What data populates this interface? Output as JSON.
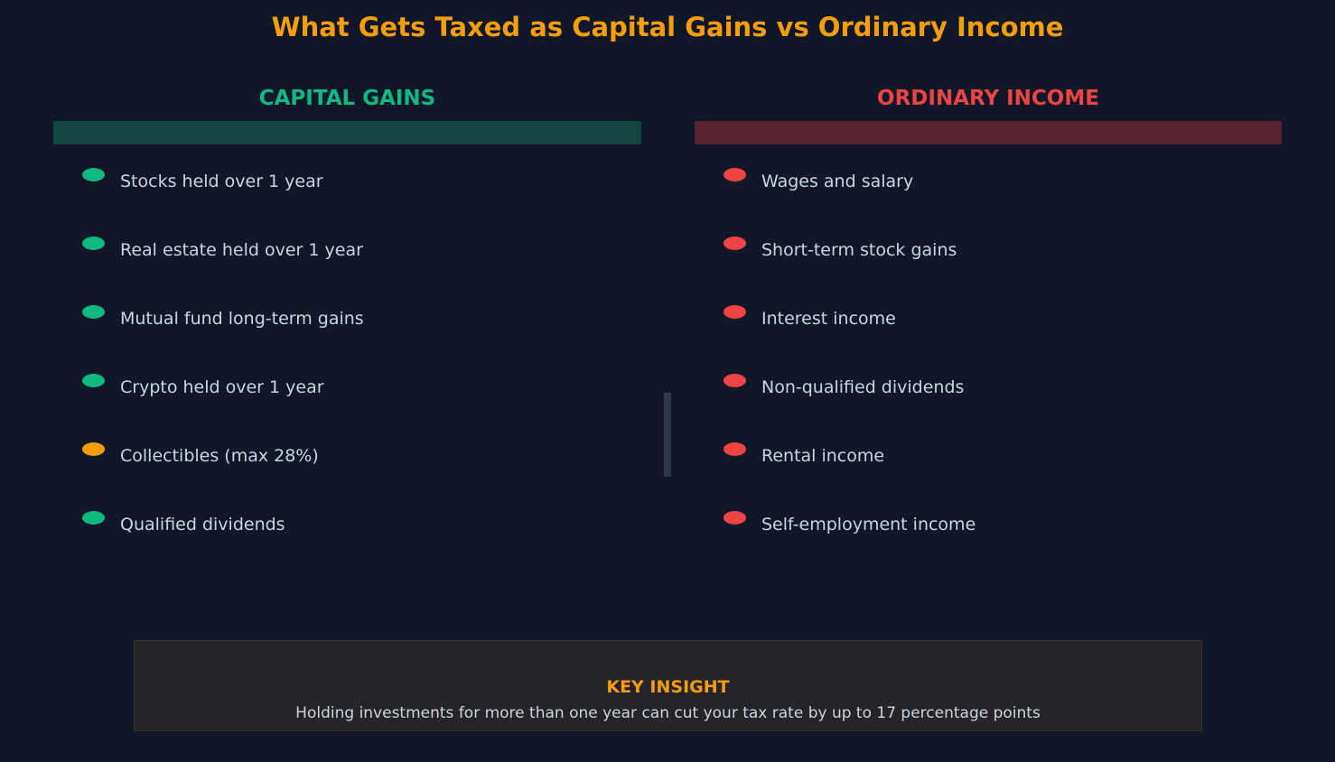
{
  "title": "What Gets Taxed as Capital Gains vs Ordinary Income",
  "colors": {
    "background": "#0f1729",
    "title": "#f59e0b",
    "capital_gains_accent": "#10b981",
    "ordinary_income_accent": "#ef4444",
    "collectibles_accent": "#f59e0b",
    "text": "#cbd5e1"
  },
  "capital_gains": {
    "heading": "CAPITAL GAINS",
    "items": [
      {
        "label": "Stocks held over 1 year",
        "dot_color": "#10b981"
      },
      {
        "label": "Real estate held over 1 year",
        "dot_color": "#10b981"
      },
      {
        "label": "Mutual fund long-term gains",
        "dot_color": "#10b981"
      },
      {
        "label": "Crypto held over 1 year",
        "dot_color": "#10b981"
      },
      {
        "label": "Collectibles (max 28%)",
        "dot_color": "#f59e0b"
      },
      {
        "label": "Qualified dividends",
        "dot_color": "#10b981"
      }
    ]
  },
  "ordinary_income": {
    "heading": "ORDINARY INCOME",
    "items": [
      {
        "label": "Wages and salary",
        "dot_color": "#ef4444"
      },
      {
        "label": "Short-term stock gains",
        "dot_color": "#ef4444"
      },
      {
        "label": "Interest income",
        "dot_color": "#ef4444"
      },
      {
        "label": "Non-qualified dividends",
        "dot_color": "#ef4444"
      },
      {
        "label": "Rental income",
        "dot_color": "#ef4444"
      },
      {
        "label": "Self-employment income",
        "dot_color": "#ef4444"
      }
    ]
  },
  "key_insight": {
    "title": "KEY INSIGHT",
    "text": "Holding investments for more than one year can cut your tax rate by up to 17 percentage points"
  }
}
